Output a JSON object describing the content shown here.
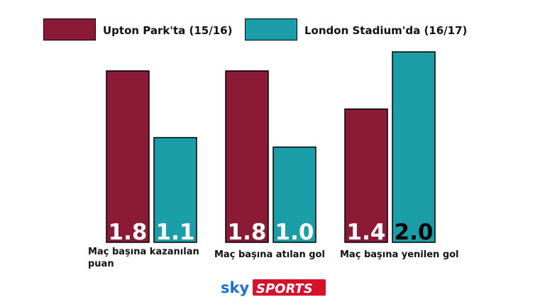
{
  "chart_data": {
    "type": "bar",
    "title": "",
    "xlabel": "",
    "ylabel": "",
    "categories": [
      "Maç başına kazanılan puan",
      "Maç başına atılan gol",
      "Maç başına yenilen gol"
    ],
    "series": [
      {
        "name": "Upton Park'ta (15/16)",
        "color": "#8b1a36",
        "values": [
          1.8,
          1.8,
          1.4
        ],
        "value_labels": [
          "1.8",
          "1.8",
          "1.4"
        ]
      },
      {
        "name": "London Stadium'da (16/17)",
        "color": "#1b9ea8",
        "values": [
          1.1,
          1.0,
          2.0
        ],
        "value_labels": [
          "1.1",
          "1.0",
          "2.0"
        ]
      }
    ],
    "ylim": [
      0,
      2.2
    ],
    "grid": false,
    "legend_position": "top-left",
    "axes_visible": false
  },
  "branding": {
    "sky_text": "sky",
    "sports_text": "SPORTS"
  },
  "colors": {
    "bar_border": "#000000",
    "value_text_primary": "#ffffff",
    "value_text_secondary": "#000000",
    "sky_blue": "#1a6fd0",
    "sports_red": "#d4122c"
  }
}
